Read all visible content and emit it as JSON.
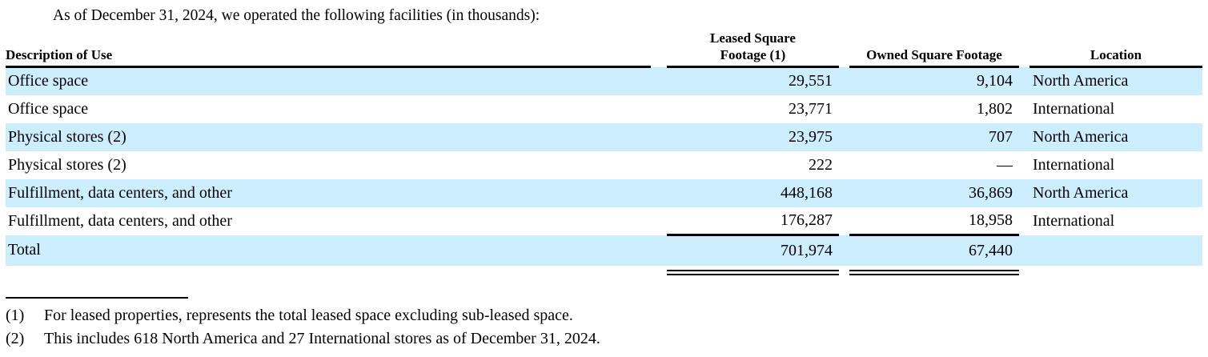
{
  "intro": "As of December 31, 2024, we operated the following facilities (in thousands):",
  "table": {
    "columns": {
      "description": "Description of Use",
      "leased_line1": "Leased Square",
      "leased_line2": "Footage (1)",
      "owned": "Owned Square Footage",
      "location": "Location"
    },
    "rows": [
      {
        "description": "Office space",
        "leased": "29,551",
        "owned": "9,104",
        "location": "North America"
      },
      {
        "description": "Office space",
        "leased": "23,771",
        "owned": "1,802",
        "location": "International"
      },
      {
        "description": "Physical stores (2)",
        "leased": "23,975",
        "owned": "707",
        "location": "North America"
      },
      {
        "description": "Physical stores (2)",
        "leased": "222",
        "owned": "—",
        "location": "International"
      },
      {
        "description": "Fulfillment, data centers, and other",
        "leased": "448,168",
        "owned": "36,869",
        "location": "North America"
      },
      {
        "description": "Fulfillment, data centers, and other",
        "leased": "176,287",
        "owned": "18,958",
        "location": "International"
      }
    ],
    "total": {
      "description": "Total",
      "leased": "701,974",
      "owned": "67,440",
      "location": ""
    }
  },
  "footnotes": [
    {
      "marker": "(1)",
      "text": "For leased properties, represents the total leased space excluding sub-leased space."
    },
    {
      "marker": "(2)",
      "text": "This includes 618 North America and 27 International stores as of December 31, 2024."
    }
  ],
  "colors": {
    "stripe": "#CCEEFF",
    "text": "#000000",
    "background": "#FFFFFF"
  }
}
